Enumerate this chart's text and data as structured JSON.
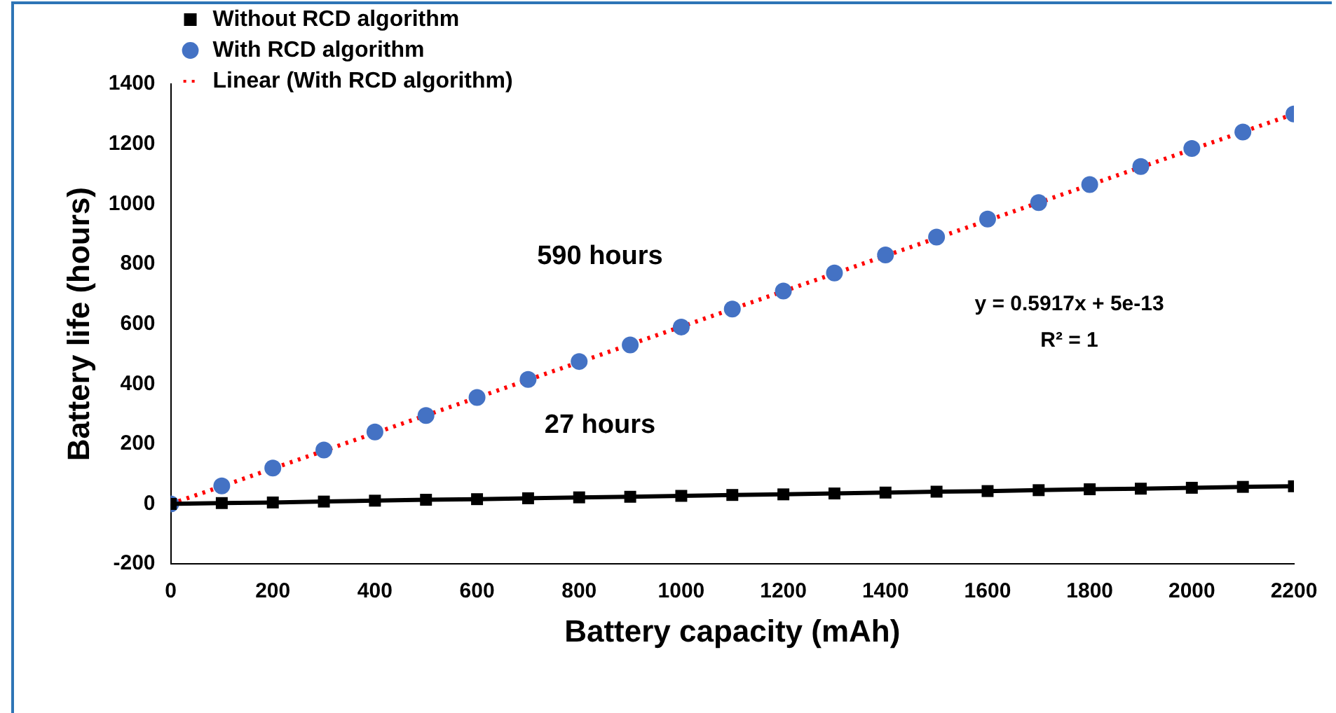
{
  "chart_data": {
    "type": "scatter",
    "xlabel": "Battery capacity (mAh)",
    "ylabel": "Battery life (hours)",
    "x": [
      0,
      100,
      200,
      300,
      400,
      500,
      600,
      700,
      800,
      900,
      1000,
      1100,
      1200,
      1300,
      1400,
      1500,
      1600,
      1700,
      1800,
      1900,
      2000,
      2100,
      2200
    ],
    "series": [
      {
        "name": "Without RCD algorithm",
        "type": "line",
        "color": "#000000",
        "marker": "square",
        "line_style": "solid",
        "values": [
          0,
          3,
          5,
          8,
          11,
          14,
          16,
          19,
          22,
          24,
          27,
          30,
          32,
          35,
          38,
          41,
          43,
          46,
          49,
          51,
          54,
          57,
          59
        ]
      },
      {
        "name": "With RCD algorithm",
        "type": "scatter",
        "color": "#4472c4",
        "marker": "circle",
        "values": [
          0,
          60,
          120,
          180,
          240,
          295,
          355,
          415,
          475,
          530,
          590,
          650,
          710,
          770,
          830,
          890,
          950,
          1005,
          1065,
          1125,
          1185,
          1240,
          1300
        ]
      },
      {
        "name": "Linear (With RCD algorithm)",
        "type": "line",
        "color": "#ff0000",
        "marker": "none",
        "line_style": "dotted",
        "x": [
          0,
          2200
        ],
        "values": [
          0,
          1300
        ]
      }
    ],
    "xlim": [
      0,
      2200
    ],
    "xticks": [
      0,
      200,
      400,
      600,
      800,
      1000,
      1200,
      1400,
      1600,
      1800,
      2000,
      2200
    ],
    "ylim": [
      -200,
      1400
    ],
    "yticks": [
      -200,
      0,
      200,
      400,
      600,
      800,
      1000,
      1200,
      1400
    ],
    "grid": false,
    "legend": "top left",
    "annotations": [
      {
        "text": "590 hours",
        "x": 1000,
        "y": 590
      },
      {
        "text": "27 hours",
        "x": 1000,
        "y": 27
      },
      "y = 0.5917x + 5e-13",
      "R² = 1"
    ]
  }
}
